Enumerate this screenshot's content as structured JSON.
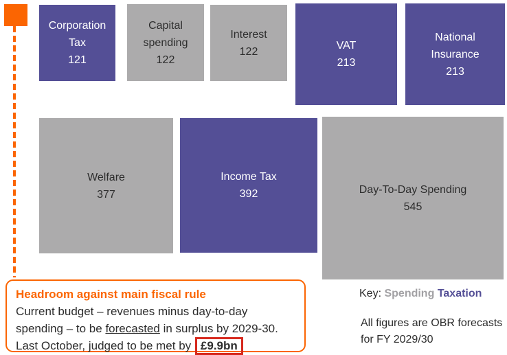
{
  "colors": {
    "taxation_purple": "#544F96",
    "spending_gray": "#ACABAC",
    "accent_orange": "#FB6502",
    "highlight_red": "#D6291E",
    "text_dark": "#2D2D2D",
    "text_light": "#FFFFFF"
  },
  "chart_data": {
    "type": "treemap",
    "description": "Proportional-area squares; area scales with value",
    "tiles": [
      {
        "name": "Corporation Tax",
        "value": 121,
        "category": "Taxation"
      },
      {
        "name": "Capital spending",
        "value": 122,
        "category": "Spending"
      },
      {
        "name": "Interest",
        "value": 122,
        "category": "Spending"
      },
      {
        "name": "VAT",
        "value": 213,
        "category": "Taxation"
      },
      {
        "name": "National Insurance",
        "value": 213,
        "category": "Taxation"
      },
      {
        "name": "Welfare",
        "value": 377,
        "category": "Spending"
      },
      {
        "name": "Income Tax",
        "value": 392,
        "category": "Taxation"
      },
      {
        "name": "Day-To-Day Spending",
        "value": 545,
        "category": "Spending"
      }
    ],
    "legend": {
      "label": "Key:",
      "entries": [
        {
          "name": "Spending",
          "color": "#ACABAC"
        },
        {
          "name": "Taxation",
          "color": "#544F96"
        }
      ],
      "position": "bottom-right"
    },
    "footnote": "All figures are OBR forecasts for FY 2029/30"
  },
  "annotation": {
    "title": "Headroom against main fiscal rule",
    "body_1": "Current budget – revenues minus day-to-day spending – to be ",
    "underlined_word": "forecasted",
    "body_2": " in surplus by 2029-30. Last October, judged to be met by",
    "highlight_value": "£9.9bn"
  }
}
